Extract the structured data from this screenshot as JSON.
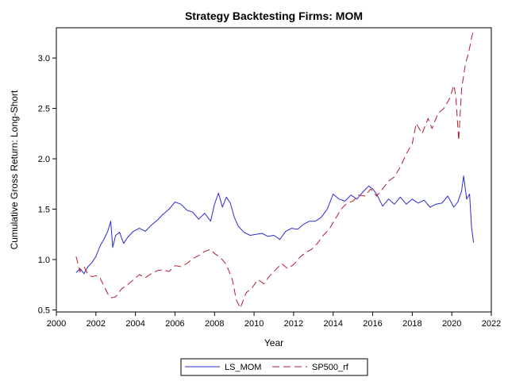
{
  "chart_data": {
    "type": "line",
    "title": "Strategy Backtesting  Firms: MOM",
    "xlabel": "Year",
    "ylabel": "Cumulative Gross Return: Long-Short",
    "xlim": [
      2000,
      2022
    ],
    "ylim": [
      0.48,
      3.3
    ],
    "x_ticks": [
      2000,
      2002,
      2004,
      2006,
      2008,
      2010,
      2012,
      2014,
      2016,
      2018,
      2020,
      2022
    ],
    "y_ticks": [
      0.5,
      1.0,
      1.5,
      2.0,
      2.5,
      3.0
    ],
    "y_tick_labels": [
      "0.5",
      "1.0",
      "1.5",
      "2.0",
      "2.5",
      "3.0"
    ],
    "grid": false,
    "legend_position": "bottom",
    "series": [
      {
        "name": "LS_MOM",
        "color": "#2b2bd4",
        "dash": "solid",
        "x": [
          2001.0,
          2001.2,
          2001.4,
          2001.6,
          2001.8,
          2002.0,
          2002.2,
          2002.4,
          2002.6,
          2002.75,
          2002.85,
          2003.0,
          2003.2,
          2003.4,
          2003.6,
          2003.9,
          2004.2,
          2004.5,
          2004.8,
          2005.1,
          2005.4,
          2005.7,
          2006.0,
          2006.3,
          2006.6,
          2006.9,
          2007.2,
          2007.5,
          2007.8,
          2008.0,
          2008.2,
          2008.4,
          2008.6,
          2008.8,
          2009.0,
          2009.2,
          2009.5,
          2009.8,
          2010.1,
          2010.4,
          2010.7,
          2011.0,
          2011.3,
          2011.6,
          2011.9,
          2012.2,
          2012.5,
          2012.8,
          2013.1,
          2013.4,
          2013.7,
          2014.0,
          2014.3,
          2014.6,
          2014.9,
          2015.2,
          2015.5,
          2015.8,
          2016.0,
          2016.2,
          2016.5,
          2016.8,
          2017.1,
          2017.4,
          2017.7,
          2018.0,
          2018.3,
          2018.6,
          2018.9,
          2019.2,
          2019.5,
          2019.8,
          2020.1,
          2020.3,
          2020.5,
          2020.6,
          2020.75,
          2020.9,
          2021.0,
          2021.1
        ],
        "y": [
          0.87,
          0.91,
          0.86,
          0.93,
          0.97,
          1.03,
          1.13,
          1.2,
          1.28,
          1.38,
          1.12,
          1.24,
          1.27,
          1.16,
          1.22,
          1.28,
          1.31,
          1.28,
          1.34,
          1.39,
          1.45,
          1.5,
          1.57,
          1.55,
          1.49,
          1.47,
          1.4,
          1.46,
          1.38,
          1.55,
          1.66,
          1.52,
          1.62,
          1.56,
          1.42,
          1.33,
          1.27,
          1.24,
          1.25,
          1.26,
          1.23,
          1.24,
          1.2,
          1.28,
          1.31,
          1.3,
          1.35,
          1.38,
          1.38,
          1.42,
          1.5,
          1.65,
          1.6,
          1.58,
          1.64,
          1.6,
          1.67,
          1.73,
          1.7,
          1.65,
          1.53,
          1.6,
          1.55,
          1.62,
          1.55,
          1.6,
          1.56,
          1.59,
          1.52,
          1.55,
          1.56,
          1.63,
          1.52,
          1.57,
          1.68,
          1.83,
          1.6,
          1.65,
          1.32,
          1.17
        ]
      },
      {
        "name": "SP500_rf",
        "color": "#b01e2e",
        "dash": "dashed",
        "x": [
          2001.0,
          2001.2,
          2001.4,
          2001.6,
          2001.8,
          2002.0,
          2002.2,
          2002.4,
          2002.6,
          2002.8,
          2003.0,
          2003.3,
          2003.6,
          2003.9,
          2004.2,
          2004.5,
          2004.8,
          2005.1,
          2005.4,
          2005.7,
          2006.0,
          2006.3,
          2006.6,
          2006.9,
          2007.2,
          2007.5,
          2007.8,
          2008.0,
          2008.3,
          2008.6,
          2008.9,
          2009.1,
          2009.3,
          2009.6,
          2009.9,
          2010.2,
          2010.5,
          2010.8,
          2011.1,
          2011.4,
          2011.7,
          2012.0,
          2012.3,
          2012.6,
          2012.9,
          2013.2,
          2013.5,
          2013.8,
          2014.1,
          2014.4,
          2014.7,
          2015.0,
          2015.3,
          2015.6,
          2015.9,
          2016.2,
          2016.5,
          2016.8,
          2017.1,
          2017.4,
          2017.7,
          2018.0,
          2018.2,
          2018.5,
          2018.8,
          2019.0,
          2019.3,
          2019.6,
          2019.9,
          2020.1,
          2020.2,
          2020.35,
          2020.5,
          2020.7,
          2020.85,
          2021.0,
          2021.1
        ],
        "y": [
          1.03,
          0.88,
          0.93,
          0.85,
          0.83,
          0.84,
          0.82,
          0.74,
          0.66,
          0.62,
          0.63,
          0.71,
          0.75,
          0.8,
          0.85,
          0.82,
          0.86,
          0.89,
          0.9,
          0.88,
          0.94,
          0.93,
          0.96,
          1.01,
          1.04,
          1.08,
          1.1,
          1.06,
          1.02,
          0.95,
          0.8,
          0.6,
          0.52,
          0.67,
          0.72,
          0.8,
          0.76,
          0.84,
          0.9,
          0.96,
          0.91,
          0.95,
          1.02,
          1.07,
          1.1,
          1.16,
          1.24,
          1.3,
          1.4,
          1.5,
          1.56,
          1.58,
          1.64,
          1.63,
          1.7,
          1.63,
          1.7,
          1.78,
          1.82,
          1.92,
          2.05,
          2.15,
          2.35,
          2.25,
          2.4,
          2.3,
          2.45,
          2.5,
          2.6,
          2.73,
          2.63,
          2.18,
          2.7,
          2.95,
          3.05,
          3.2,
          3.28
        ]
      }
    ]
  }
}
